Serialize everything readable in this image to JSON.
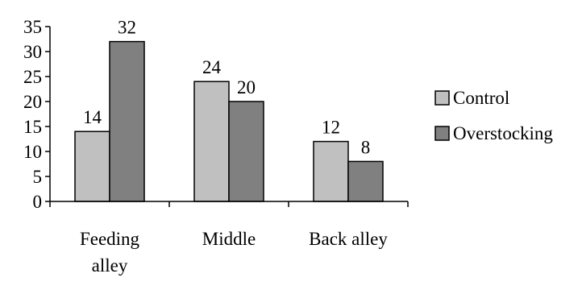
{
  "chart_data": {
    "type": "bar",
    "categories": [
      [
        "Feeding",
        "alley"
      ],
      [
        "Middle"
      ],
      [
        "Back alley"
      ]
    ],
    "series": [
      {
        "name": "Control",
        "values": [
          14,
          24,
          12
        ],
        "color": "#c0c0c0"
      },
      {
        "name": "Overstocking",
        "values": [
          32,
          20,
          8
        ],
        "color": "#808080"
      }
    ],
    "ylim": [
      0,
      35
    ],
    "yticks": [
      0,
      5,
      10,
      15,
      20,
      25,
      30,
      35
    ],
    "grid": false,
    "data_labels": true,
    "legend": "right",
    "title": "",
    "xlabel": "",
    "ylabel": ""
  }
}
